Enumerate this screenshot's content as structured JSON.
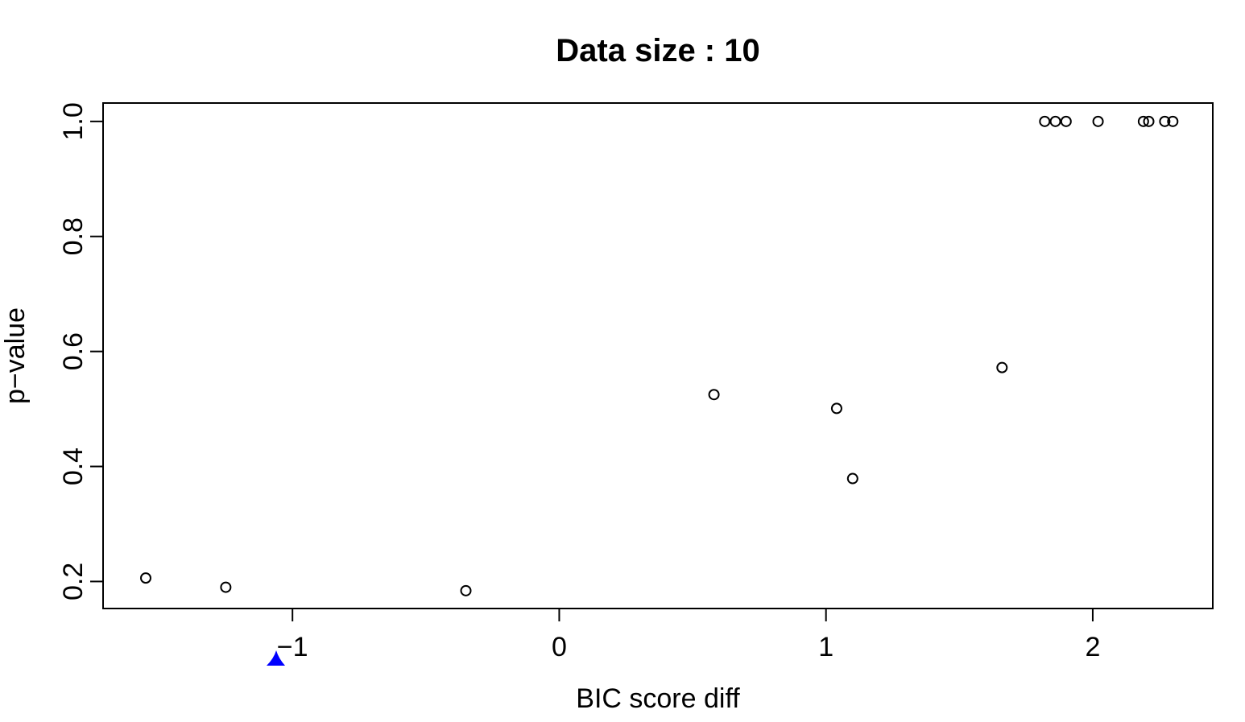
{
  "chart_data": {
    "type": "scatter",
    "title": "Data size :  10",
    "xlabel": "BIC score diff",
    "ylabel": "p−value",
    "xlim": [
      -1.71,
      2.45
    ],
    "ylim": [
      0.153,
      1.032
    ],
    "x_ticks": [
      {
        "value": -1,
        "label": "−1"
      },
      {
        "value": 0,
        "label": "0"
      },
      {
        "value": 1,
        "label": "1"
      },
      {
        "value": 2,
        "label": "2"
      }
    ],
    "y_ticks": [
      {
        "value": 0.2,
        "label": "0.2"
      },
      {
        "value": 0.4,
        "label": "0.4"
      },
      {
        "value": 0.6,
        "label": "0.6"
      },
      {
        "value": 0.8,
        "label": "0.8"
      },
      {
        "value": 1.0,
        "label": "1.0"
      }
    ],
    "grid": false,
    "legend": "none",
    "marker": "open-circle",
    "point_color": "#000000",
    "accent_marker_color": "#0000ff",
    "series": [
      {
        "x": [
          -1.55,
          -1.25,
          -0.35,
          0.58,
          1.04,
          1.1,
          1.66,
          1.82,
          1.86,
          1.9,
          2.02,
          2.19,
          2.21,
          2.27,
          2.3
        ],
        "y": [
          0.206,
          0.19,
          0.184,
          0.525,
          0.501,
          0.379,
          0.572,
          1.0,
          1.0,
          1.0,
          1.0,
          1.0,
          1.0,
          1.0,
          1.0
        ]
      }
    ]
  }
}
